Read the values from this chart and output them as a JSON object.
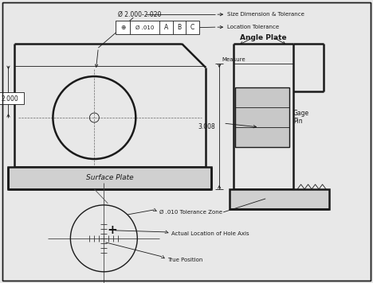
{
  "bg_color": "#e8e8e8",
  "line_color": "#1a1a1a",
  "annotations": {
    "size_dim": "Size Dimension & Tolerance",
    "loc_tol": "Location Tolerance",
    "angle_plate": "Angle Plate",
    "measure": "Measure",
    "gage_pin": "Gage\nPin",
    "dim_3008": "3.008",
    "dim_2000": "2.000",
    "surface_plate": "Surface Plate",
    "tol_zone": "Ø .010 Tolerance Zone",
    "hole_axis": "Actual Location of Hole Axis",
    "true_pos": "True Position",
    "size_dim_text": "Ø 2.000-2.020"
  }
}
